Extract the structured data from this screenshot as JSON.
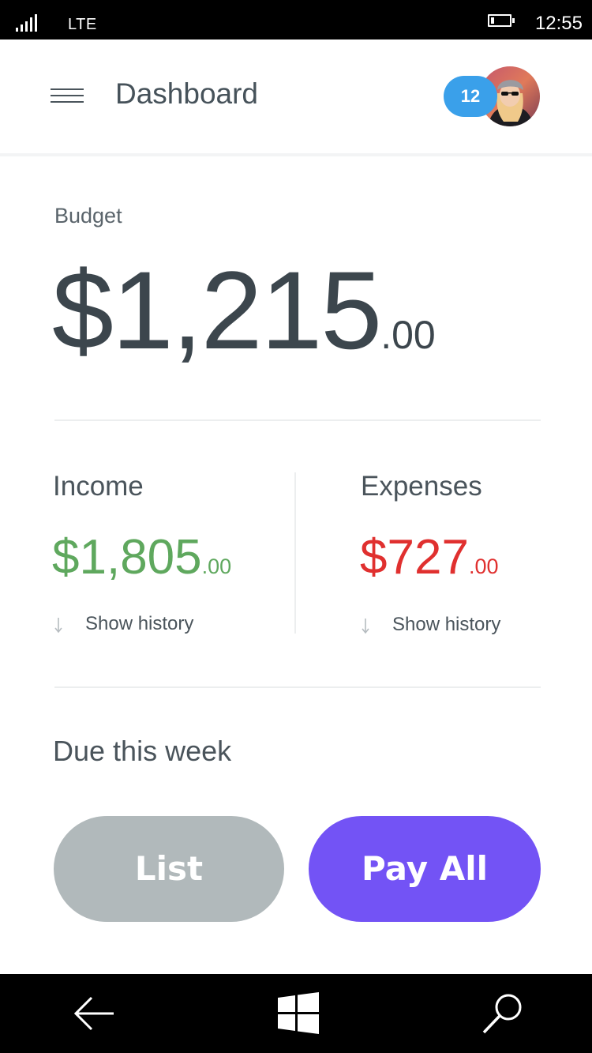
{
  "status_bar": {
    "network": "LTE",
    "time": "12:55",
    "icons": [
      "signal-icon",
      "battery-icon"
    ]
  },
  "header": {
    "title": "Dashboard",
    "notification_count": "12",
    "icons": [
      "hamburger-menu-icon",
      "avatar"
    ]
  },
  "budget": {
    "label": "Budget",
    "amount_major": "$1,215",
    "amount_minor": ".00"
  },
  "income": {
    "title": "Income",
    "amount_major": "$1,805",
    "amount_minor": ".00",
    "history_label": "Show history",
    "color": "#5fa85e"
  },
  "expenses": {
    "title": "Expenses",
    "amount_major": "$727",
    "amount_minor": ".00",
    "history_label": "Show history",
    "color": "#e0302f"
  },
  "due": {
    "title": "Due this week"
  },
  "actions": {
    "list_label": "List",
    "pay_all_label": "Pay All",
    "pay_all_color": "#7353f5",
    "list_color": "#b1b9bb"
  },
  "nav_bar": {
    "icons": [
      "back-arrow-icon",
      "windows-logo-icon",
      "search-icon"
    ]
  }
}
